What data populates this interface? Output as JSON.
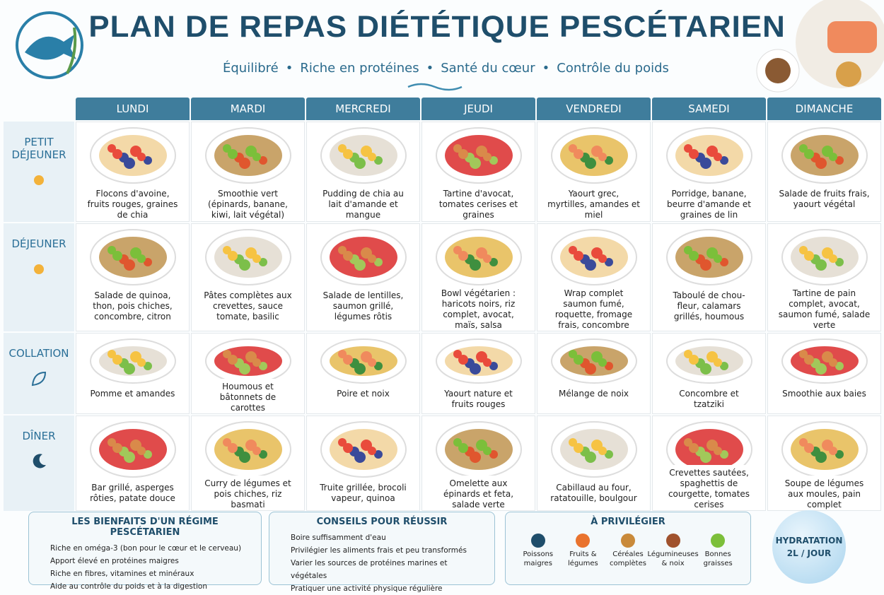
{
  "header": {
    "title": "PLAN DE REPAS DIÉTÉTIQUE PESCÉTARIEN",
    "subtitle_items": [
      "Équilibré",
      "Riche en protéines",
      "Santé du cœur",
      "Contrôle du poids"
    ]
  },
  "days": [
    "LUNDI",
    "MARDI",
    "MERCREDI",
    "JEUDI",
    "VENDREDI",
    "SAMEDI",
    "DIMANCHE"
  ],
  "meals": [
    {
      "name": "PETIT DÉJEUNER",
      "items": [
        "Flocons d'avoine, fruits rouges, graines de chia",
        "Smoothie vert (épinards, banane, kiwi, lait végétal)",
        "Pudding de chia au lait d'amande et mangue",
        "Tartine d'avocat, tomates cerises et graines",
        "Yaourt grec, myrtilles, amandes et miel",
        "Porridge, banane, beurre d'amande et graines de lin",
        "Salade de fruits frais, yaourt végétal"
      ]
    },
    {
      "name": "DÉJEUNER",
      "items": [
        "Salade de quinoa, thon, pois chiches, concombre, citron",
        "Pâtes complètes aux crevettes, sauce tomate, basilic",
        "Salade de lentilles, saumon grillé, légumes rôtis",
        "Bowl végétarien : haricots noirs, riz complet, avocat, maïs, salsa",
        "Wrap complet saumon fumé, roquette, fromage frais, concombre",
        "Taboulé de chou-fleur, calamars grillés, houmous",
        "Tartine de pain complet, avocat, saumon fumé, salade verte"
      ]
    },
    {
      "name": "COLLATION",
      "items": [
        "Pomme et amandes",
        "Houmous et bâtonnets de carottes",
        "Poire et noix",
        "Yaourt nature et fruits rouges",
        "Mélange de noix",
        "Concombre et tzatziki",
        "Smoothie aux baies"
      ]
    },
    {
      "name": "DÎNER",
      "items": [
        "Bar grillé, asperges rôties, patate douce",
        "Curry de légumes et pois chiches, riz basmati",
        "Truite grillée, brocoli vapeur, quinoa",
        "Omelette aux épinards et feta, salade verte",
        "Cabillaud au four, ratatouille, boulgour",
        "Crevettes sautées, spaghettis de courgette, tomates cerises",
        "Soupe de légumes aux moules, pain complet"
      ]
    }
  ],
  "benefits": {
    "title": "LES BIENFAITS D'UN RÉGIME PESCÉTARIEN",
    "items": [
      "Riche en oméga-3 (bon pour le cœur et le cerveau)",
      "Apport élevé en protéines maigres",
      "Riche en fibres, vitamines et minéraux",
      "Aide au contrôle du poids et à la digestion"
    ]
  },
  "tips": {
    "title": "CONSEILS POUR RÉUSSIR",
    "items": [
      "Boire suffisamment d'eau",
      "Privilégier les aliments frais et peu transformés",
      "Varier les sources de protéines marines et végétales",
      "Pratiquer une activité physique régulière"
    ]
  },
  "favor": {
    "title": "À PRIVILÉGIER",
    "items": [
      "Poissons maigres",
      "Fruits & légumes",
      "Céréales complètes",
      "Légumineuses & noix",
      "Bonnes graisses"
    ]
  },
  "hydration": {
    "title": "HYDRATATION",
    "amount": "2L / JOUR"
  }
}
